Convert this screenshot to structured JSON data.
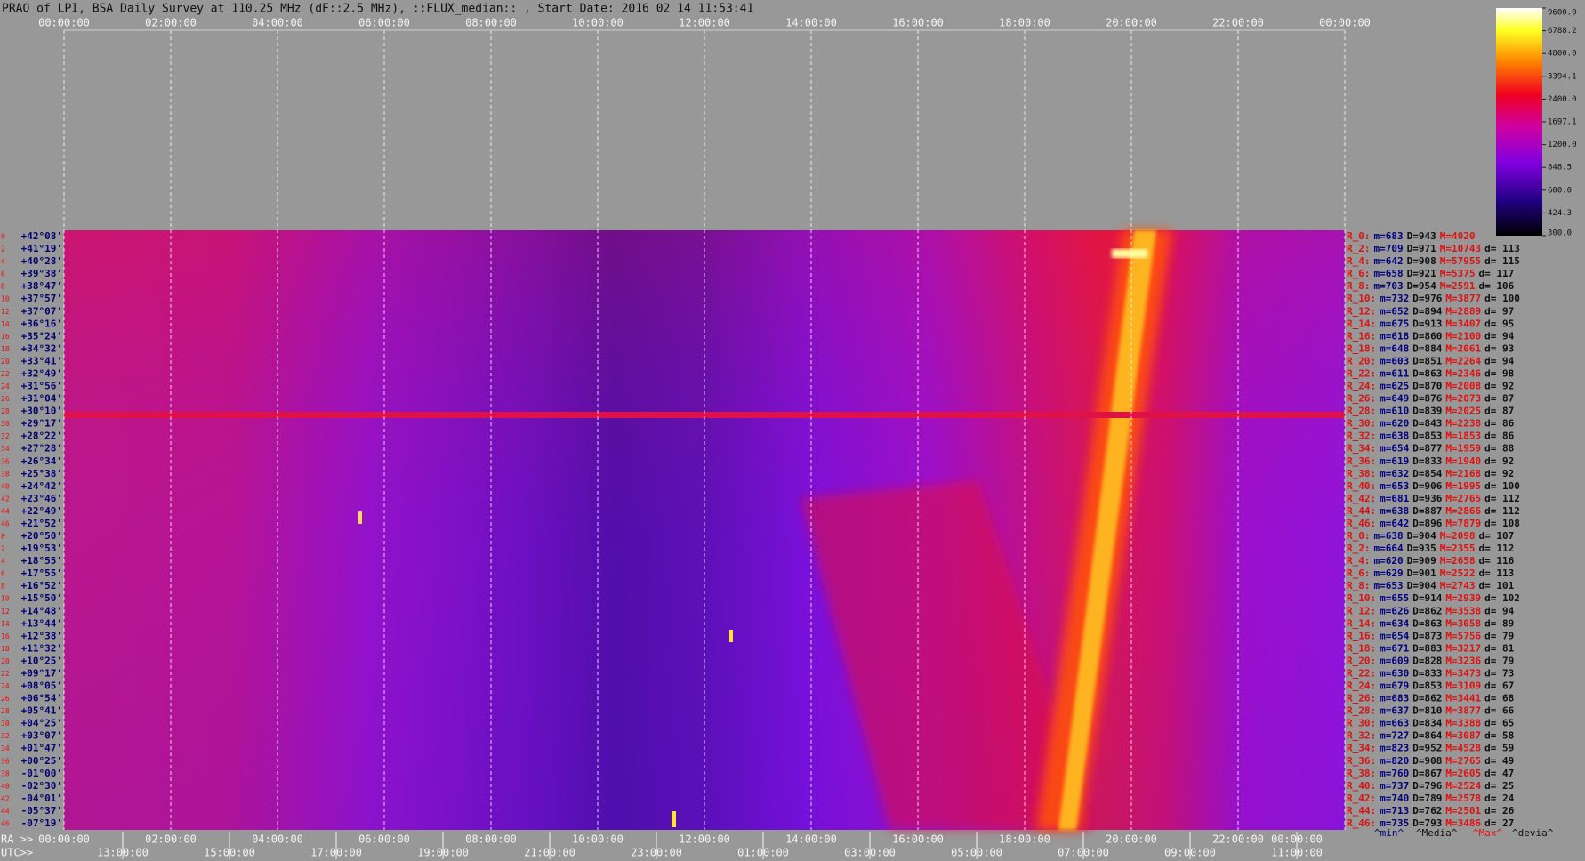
{
  "chart_data": {
    "type": "heatmap",
    "title": "PRAO of LPI, BSA Daily Survey at 110.25 MHz (dF::2.5 MHz), ::FLUX_median:: , Start Date: 2016 02 14 11:53:41",
    "x_top_labels": [
      "00:00:00",
      "02:00:00",
      "04:00:00",
      "06:00:00",
      "08:00:00",
      "10:00:00",
      "12:00:00",
      "14:00:00",
      "16:00:00",
      "18:00:00",
      "20:00:00",
      "22:00:00",
      "00:00:00"
    ],
    "ra_label": "RA >>",
    "ra_ticks": [
      "00:00:00",
      "02:00:00",
      "04:00:00",
      "06:00:00",
      "08:00:00",
      "10:00:00",
      "12:00:00",
      "14:00:00",
      "16:00:00",
      "18:00:00",
      "20:00:00",
      "22:00:00",
      "00:00:00"
    ],
    "utc_label": "UTC>>",
    "utc_ticks": [
      "13:00:00",
      "15:00:00",
      "17:00:00",
      "19:00:00",
      "21:00:00",
      "23:00:00",
      "01:00:00",
      "03:00:00",
      "05:00:00",
      "07:00:00",
      "09:00:00",
      "11:00:00"
    ],
    "y_labels": [
      "+42°08'",
      "+41°19'",
      "+40°28'",
      "+39°38'",
      "+38°47'",
      "+37°57'",
      "+37°07'",
      "+36°16'",
      "+35°24'",
      "+34°32'",
      "+33°41'",
      "+32°49'",
      "+31°56'",
      "+31°04'",
      "+30°10'",
      "+29°17'",
      "+28°22'",
      "+27°28'",
      "+26°34'",
      "+25°38'",
      "+24°42'",
      "+23°46'",
      "+22°49'",
      "+21°52'",
      "+20°50'",
      "+19°53'",
      "+18°55'",
      "+17°55'",
      "+16°52'",
      "+15°50'",
      "+14°48'",
      "+13°44'",
      "+12°38'",
      "+11°32'",
      "+10°25'",
      "+09°17'",
      "+08°05'",
      "+06°54'",
      "+05°41'",
      "+04°25'",
      "+03°07'",
      "+01°47'",
      "+00°25'",
      "-01°00'",
      "-02°30'",
      "-04°01'",
      "-05°37'",
      "-07°19'"
    ],
    "row_numbers": [
      "0",
      "2",
      "4",
      "6",
      "8",
      "10",
      "12",
      "14",
      "16",
      "18",
      "20",
      "22",
      "24",
      "26",
      "28",
      "30",
      "32",
      "34",
      "36",
      "38",
      "40",
      "42",
      "44",
      "46",
      "0",
      "2",
      "4",
      "6",
      "8",
      "10",
      "12",
      "14",
      "16",
      "18",
      "20",
      "22",
      "24",
      "26",
      "28",
      "30",
      "32",
      "34",
      "36",
      "38",
      "40",
      "42",
      "44",
      "46"
    ],
    "stat_labels": {
      "m": "m=",
      "D": "D=",
      "M": "M=",
      "d": "d= "
    },
    "rows": [
      {
        "name": "R_0:",
        "m": 683,
        "D": 943,
        "M": 4020,
        "d": null
      },
      {
        "name": "R_2:",
        "m": 709,
        "D": 971,
        "M": 10743,
        "d": 113
      },
      {
        "name": "R_4:",
        "m": 642,
        "D": 908,
        "M": 57955,
        "d": 115
      },
      {
        "name": "R_6:",
        "m": 658,
        "D": 921,
        "M": 5375,
        "d": 117
      },
      {
        "name": "R_8:",
        "m": 703,
        "D": 954,
        "M": 2591,
        "d": 106
      },
      {
        "name": "R_10:",
        "m": 732,
        "D": 976,
        "M": 3877,
        "d": 100
      },
      {
        "name": "R_12:",
        "m": 652,
        "D": 894,
        "M": 2889,
        "d": 97
      },
      {
        "name": "R_14:",
        "m": 675,
        "D": 913,
        "M": 3407,
        "d": 95
      },
      {
        "name": "R_16:",
        "m": 618,
        "D": 860,
        "M": 2100,
        "d": 94
      },
      {
        "name": "R_18:",
        "m": 648,
        "D": 884,
        "M": 2061,
        "d": 93
      },
      {
        "name": "R_20:",
        "m": 603,
        "D": 851,
        "M": 2264,
        "d": 94
      },
      {
        "name": "R_22:",
        "m": 611,
        "D": 863,
        "M": 2346,
        "d": 98
      },
      {
        "name": "R_24:",
        "m": 625,
        "D": 870,
        "M": 2008,
        "d": 92
      },
      {
        "name": "R_26:",
        "m": 649,
        "D": 876,
        "M": 2073,
        "d": 87
      },
      {
        "name": "R_28:",
        "m": 610,
        "D": 839,
        "M": 2025,
        "d": 87
      },
      {
        "name": "R_30:",
        "m": 620,
        "D": 843,
        "M": 2238,
        "d": 86
      },
      {
        "name": "R_32:",
        "m": 638,
        "D": 853,
        "M": 1853,
        "d": 86
      },
      {
        "name": "R_34:",
        "m": 654,
        "D": 877,
        "M": 1959,
        "d": 88
      },
      {
        "name": "R_36:",
        "m": 619,
        "D": 833,
        "M": 1940,
        "d": 92
      },
      {
        "name": "R_38:",
        "m": 632,
        "D": 854,
        "M": 2168,
        "d": 92
      },
      {
        "name": "R_40:",
        "m": 653,
        "D": 906,
        "M": 1995,
        "d": 100
      },
      {
        "name": "R_42:",
        "m": 681,
        "D": 936,
        "M": 2765,
        "d": 112
      },
      {
        "name": "R_44:",
        "m": 638,
        "D": 887,
        "M": 2866,
        "d": 112
      },
      {
        "name": "R_46:",
        "m": 642,
        "D": 896,
        "M": 7879,
        "d": 108
      },
      {
        "name": "R_0:",
        "m": 638,
        "D": 904,
        "M": 2098,
        "d": 107
      },
      {
        "name": "R_2:",
        "m": 664,
        "D": 935,
        "M": 2355,
        "d": 112
      },
      {
        "name": "R_4:",
        "m": 620,
        "D": 909,
        "M": 2658,
        "d": 116
      },
      {
        "name": "R_6:",
        "m": 629,
        "D": 901,
        "M": 2522,
        "d": 113
      },
      {
        "name": "R_8:",
        "m": 653,
        "D": 904,
        "M": 2743,
        "d": 101
      },
      {
        "name": "R_10:",
        "m": 655,
        "D": 914,
        "M": 2939,
        "d": 102
      },
      {
        "name": "R_12:",
        "m": 626,
        "D": 862,
        "M": 3538,
        "d": 94
      },
      {
        "name": "R_14:",
        "m": 634,
        "D": 863,
        "M": 3058,
        "d": 89
      },
      {
        "name": "R_16:",
        "m": 654,
        "D": 873,
        "M": 5756,
        "d": 79
      },
      {
        "name": "R_18:",
        "m": 671,
        "D": 883,
        "M": 3217,
        "d": 81
      },
      {
        "name": "R_20:",
        "m": 609,
        "D": 828,
        "M": 3236,
        "d": 79
      },
      {
        "name": "R_22:",
        "m": 630,
        "D": 833,
        "M": 3473,
        "d": 73
      },
      {
        "name": "R_24:",
        "m": 679,
        "D": 853,
        "M": 3109,
        "d": 67
      },
      {
        "name": "R_26:",
        "m": 683,
        "D": 862,
        "M": 3441,
        "d": 68
      },
      {
        "name": "R_28:",
        "m": 637,
        "D": 810,
        "M": 3877,
        "d": 66
      },
      {
        "name": "R_30:",
        "m": 663,
        "D": 834,
        "M": 3388,
        "d": 65
      },
      {
        "name": "R_32:",
        "m": 727,
        "D": 864,
        "M": 3087,
        "d": 58
      },
      {
        "name": "R_34:",
        "m": 823,
        "D": 952,
        "M": 4528,
        "d": 59
      },
      {
        "name": "R_36:",
        "m": 820,
        "D": 908,
        "M": 2765,
        "d": 49
      },
      {
        "name": "R_38:",
        "m": 760,
        "D": 867,
        "M": 2605,
        "d": 47
      },
      {
        "name": "R_40:",
        "m": 737,
        "D": 796,
        "M": 2524,
        "d": 25
      },
      {
        "name": "R_42:",
        "m": 740,
        "D": 789,
        "M": 2578,
        "d": 24
      },
      {
        "name": "R_44:",
        "m": 713,
        "D": 762,
        "M": 2501,
        "d": 26
      },
      {
        "name": "R_46:",
        "m": 735,
        "D": 793,
        "M": 3486,
        "d": 27
      }
    ],
    "footer": [
      "^min^",
      "^Media^",
      "^Max^",
      "^devia^"
    ],
    "colorbar_lim": [
      300,
      9600
    ],
    "colorbar_log": true,
    "colorbar_ticks": [
      {
        "value": 9600,
        "label": "9600.0"
      },
      6788.2,
      {
        "value": 4800,
        "label": "4800.0"
      },
      3394.1,
      {
        "value": 2400,
        "label": "2400.0"
      },
      1697.1,
      {
        "value": 1200,
        "label": "1200.0"
      },
      848.5,
      {
        "value": 600,
        "label": "600.0"
      },
      424.3,
      {
        "value": 300,
        "label": "300.0"
      }
    ]
  }
}
